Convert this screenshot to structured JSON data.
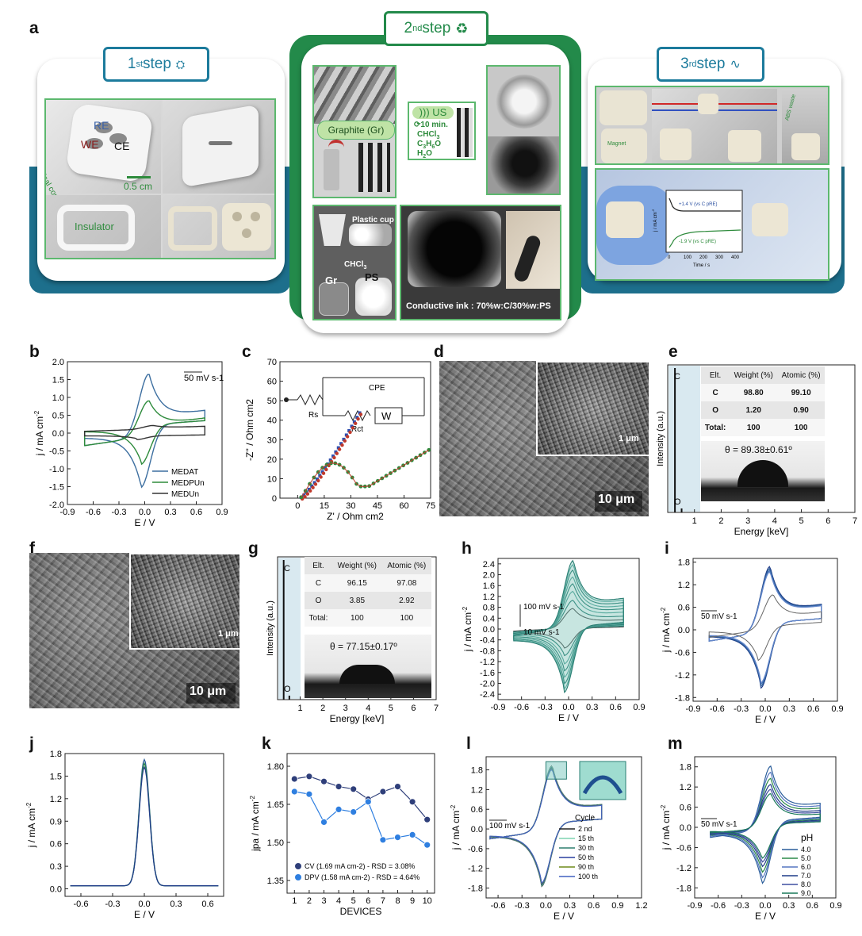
{
  "panel_letters": {
    "a": "a",
    "b": "b",
    "c": "c",
    "d": "d",
    "e": "e",
    "f": "f",
    "g": "g",
    "h": "h",
    "i": "i",
    "j": "j",
    "k": "k",
    "l": "l",
    "m": "m"
  },
  "steps": {
    "s1": {
      "pre": "1",
      "sup": "st",
      "post": " step"
    },
    "s2": {
      "pre": "2",
      "sup": "nd",
      "post": " step"
    },
    "s3": {
      "pre": "3",
      "sup": "rd",
      "post": " step"
    }
  },
  "step1": {
    "re": "RE",
    "we": "WE",
    "ce": "CE",
    "electrical": "Electrical contact",
    "scale": "0.5 cm",
    "insulator": "Insulator"
  },
  "step2": {
    "graphite": "Graphite (Gr)",
    "us": "US",
    "time": "10 min.",
    "chem1": "CHCl",
    "chem1_sub": "3",
    "chem2": "C",
    "chem2_sub": "3",
    "chem2_rest": "H",
    "chem2_sub2": "6",
    "chem2_end": "O",
    "chem3": "H",
    "chem3_sub": "2",
    "chem3_end": "O",
    "plastic": "Plastic cup",
    "chcl3": "CHCl",
    "chcl3_sub": "3",
    "gr": "Gr",
    "ps": "PS",
    "ink": "Conductive ink : 70%w:C/30%w:PS"
  },
  "step3": {
    "abs": "ABS waste",
    "magnet": "Magnet",
    "v1": "+1.4 V (vs C pRE)",
    "v2": "-1.9 V (vs C pRE)",
    "ylab": "j / mA cm",
    "ylab_sup": "-2",
    "xlab": "Time / s",
    "xticks": [
      "0",
      "100",
      "200",
      "300",
      "400"
    ]
  },
  "d": {
    "scale": "10 μm",
    "inset_scale": "1 μm"
  },
  "f": {
    "scale": "10 μm",
    "inset_scale": "1 μm"
  },
  "e": {
    "ylabel": "Intensity (a.u.)",
    "xlabel": "Energy [keV]",
    "peak_c": "C",
    "peak_o": "O",
    "contact": "θ = 89.38±0.61º",
    "table": [
      [
        "Elt.",
        "Weight (%)",
        "Atomic (%)"
      ],
      [
        "C",
        "98.80",
        "99.10"
      ],
      [
        "O",
        "1.20",
        "0.90"
      ],
      [
        "Total:",
        "100",
        "100"
      ]
    ]
  },
  "g": {
    "ylabel": "Intensity (a.u.)",
    "xlabel": "Energy [keV]",
    "peak_c": "C",
    "peak_o": "O",
    "contact": "θ = 77.15±0.17º",
    "table": [
      [
        "Elt.",
        "Weight (%)",
        "Atomic (%)"
      ],
      [
        "C",
        "96.15",
        "97.08"
      ],
      [
        "O",
        "3.85",
        "2.92"
      ],
      [
        "Total:",
        "100",
        "100"
      ]
    ]
  },
  "chart_data": [
    {
      "id": "b",
      "type": "line",
      "xlabel": "E / V",
      "ylabel": "j / mA cm-2",
      "xlim": [
        -0.9,
        0.9
      ],
      "ylim": [
        -2.0,
        2.0
      ],
      "xticks": [
        "-0.9",
        "-0.6",
        "-0.3",
        "0.0",
        "0.3",
        "0.6",
        "0.9"
      ],
      "yticks": [
        "-2.0",
        "-1.5",
        "-1.0",
        "-0.5",
        "0.0",
        "0.5",
        "1.0",
        "1.5",
        "2.0"
      ],
      "annotation": "50 mV s-1",
      "series": [
        {
          "name": "MEDAT",
          "color": "#3d6fa0",
          "peak_anodic": [
            0.05,
            1.75
          ],
          "peak_cathodic": [
            -0.05,
            -1.75
          ]
        },
        {
          "name": "MEDPUn",
          "color": "#2e8b3c",
          "peak_anodic": [
            0.05,
            1.0
          ],
          "peak_cathodic": [
            -0.05,
            -1.1
          ]
        },
        {
          "name": "MEDUn",
          "color": "#333333",
          "peak_anodic": [
            0.1,
            0.1
          ],
          "peak_cathodic": [
            -0.1,
            -0.1
          ]
        }
      ]
    },
    {
      "id": "c",
      "type": "scatter",
      "xlabel": "Z' / Ohm cm2",
      "ylabel": "-Z'' / Ohm cm2",
      "xlim": [
        -10,
        75
      ],
      "ylim": [
        0,
        70
      ],
      "xticks": [
        "0",
        "15",
        "30",
        "45",
        "60",
        "75"
      ],
      "yticks": [
        "0",
        "10",
        "20",
        "30",
        "40",
        "50",
        "60",
        "70"
      ],
      "circuit": {
        "rs": "Rs",
        "rct": "Rct",
        "cpe": "CPE",
        "w": "W"
      }
    },
    {
      "id": "e",
      "type": "line",
      "xlabel": "Energy [keV]",
      "ylabel": "Intensity (a.u.)",
      "xlim": [
        0,
        7
      ],
      "xticks": [
        "1",
        "2",
        "3",
        "4",
        "5",
        "6",
        "7"
      ]
    },
    {
      "id": "g",
      "type": "line",
      "xlabel": "Energy [keV]",
      "ylabel": "Intensity (a.u.)",
      "xlim": [
        0,
        7
      ],
      "xticks": [
        "1",
        "2",
        "3",
        "4",
        "5",
        "6",
        "7"
      ]
    },
    {
      "id": "h",
      "type": "line",
      "xlabel": "E / V",
      "ylabel": "j / mA cm-2",
      "xlim": [
        -0.9,
        0.9
      ],
      "ylim": [
        -2.6,
        2.6
      ],
      "xticks": [
        "-0.9",
        "-0.6",
        "-0.3",
        "0.0",
        "0.3",
        "0.6",
        "0.9"
      ],
      "yticks": [
        "-2.4",
        "-2.0",
        "-1.6",
        "-1.2",
        "-0.8",
        "-0.4",
        "0.0",
        "0.4",
        "0.8",
        "1.2",
        "1.6",
        "2.0",
        "2.4"
      ],
      "annotation_top": "100 mV s-1",
      "annotation_bottom": "10 mV s-1",
      "scale_factors": [
        0.3,
        0.42,
        0.55,
        0.66,
        0.76,
        0.86,
        0.94,
        1.0
      ]
    },
    {
      "id": "i",
      "type": "line",
      "xlabel": "E / V",
      "ylabel": "j / mA cm-2",
      "xlim": [
        -0.9,
        0.9
      ],
      "ylim": [
        -1.9,
        1.9
      ],
      "xticks": [
        "-0.9",
        "-0.6",
        "-0.3",
        "0.0",
        "0.3",
        "0.6",
        "0.9"
      ],
      "yticks": [
        "-1.8",
        "-1.2",
        "-0.6",
        "0.0",
        "0.6",
        "1.2",
        "1.8"
      ],
      "annotation": "50 mV s-1"
    },
    {
      "id": "j",
      "type": "line",
      "xlabel": "E / V",
      "ylabel": "j / mA cm-2",
      "xlim": [
        -0.75,
        0.75
      ],
      "ylim": [
        -0.1,
        1.8
      ],
      "xticks": [
        "-0.6",
        "-0.3",
        "0.0",
        "0.3",
        "0.6"
      ],
      "yticks": [
        "0.0",
        "0.3",
        "0.6",
        "0.9",
        "1.2",
        "1.5",
        "1.8"
      ],
      "peak": [
        0.0,
        1.68
      ]
    },
    {
      "id": "k",
      "type": "line",
      "xlabel": "DEVICES",
      "ylabel": "jpa / mA cm-2",
      "xlim": [
        0.5,
        10.5
      ],
      "ylim": [
        1.3,
        1.85
      ],
      "categories": [
        1,
        2,
        3,
        4,
        5,
        6,
        7,
        8,
        9,
        10
      ],
      "xticks": [
        "1",
        "2",
        "3",
        "4",
        "5",
        "6",
        "7",
        "8",
        "9",
        "10"
      ],
      "yticks": [
        "1.35",
        "1.50",
        "1.65",
        "1.80"
      ],
      "series": [
        {
          "name": "CV (1.69 mA cm-2) - RSD = 3.08%",
          "color": "#2f3f7a",
          "values": [
            1.75,
            1.76,
            1.74,
            1.72,
            1.71,
            1.67,
            1.7,
            1.72,
            1.66,
            1.59
          ]
        },
        {
          "name": "DPV (1.58 mA cm-2) - RSD = 4.64%",
          "color": "#2f7fe0",
          "values": [
            1.7,
            1.69,
            1.58,
            1.63,
            1.62,
            1.66,
            1.51,
            1.52,
            1.53,
            1.49
          ]
        }
      ]
    },
    {
      "id": "l",
      "type": "line",
      "xlabel": "E / V",
      "ylabel": "j / mA cm-2",
      "xlim": [
        -0.75,
        1.2
      ],
      "ylim": [
        -2.1,
        2.2
      ],
      "xticks": [
        "-0.6",
        "-0.3",
        "0.0",
        "0.3",
        "0.6",
        "0.9",
        "1.2"
      ],
      "yticks": [
        "-1.8",
        "-1.2",
        "-0.6",
        "0.0",
        "0.6",
        "1.2",
        "1.8"
      ],
      "annotation": "100 mV s-1",
      "legend_title": "Cycle",
      "series": [
        {
          "name": "2 nd",
          "color": "#222222"
        },
        {
          "name": "15 th",
          "color": "#7fd3b0"
        },
        {
          "name": "30 th",
          "color": "#2f7f6f"
        },
        {
          "name": "50 th",
          "color": "#2a3f9f"
        },
        {
          "name": "90 th",
          "color": "#6e8a1a"
        },
        {
          "name": "100 th",
          "color": "#4060c0"
        }
      ]
    },
    {
      "id": "m",
      "type": "line",
      "xlabel": "E / V",
      "ylabel": "j / mA cm-2",
      "xlim": [
        -0.9,
        0.9
      ],
      "ylim": [
        -2.1,
        2.1
      ],
      "xticks": [
        "-0.9",
        "-0.6",
        "-0.3",
        "0.0",
        "0.3",
        "0.6",
        "0.9"
      ],
      "yticks": [
        "-1.8",
        "-1.2",
        "-0.6",
        "0.0",
        "0.6",
        "1.2",
        "1.8"
      ],
      "annotation": "50 mV s-1",
      "legend_title": "pH",
      "series": [
        {
          "name": "4.0",
          "color": "#2a5d9a",
          "scale": 1.0
        },
        {
          "name": "5.0",
          "color": "#2c8a48",
          "scale": 0.8
        },
        {
          "name": "6.0",
          "color": "#5577c0",
          "scale": 0.9
        },
        {
          "name": "7.0",
          "color": "#1f3c88",
          "scale": 0.7
        },
        {
          "name": "8.0",
          "color": "#3f4fa0",
          "scale": 0.62
        },
        {
          "name": "9.0",
          "color": "#1a7a5a",
          "scale": 0.55
        }
      ]
    }
  ]
}
